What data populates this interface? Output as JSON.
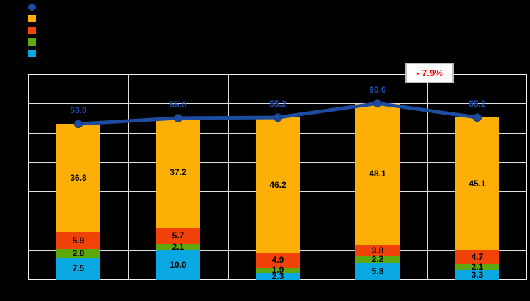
{
  "background": "#000000",
  "chart_data": {
    "type": "bar",
    "subtype": "stacked-column-with-total-line",
    "title": "",
    "categories": [
      "",
      "",
      "",
      "",
      ""
    ],
    "ylim": [
      0,
      70
    ],
    "grid_step": 10,
    "grid": true,
    "grid_color": "#DFDFDF",
    "plot_border_color": "#EFEFEF",
    "label_color": "#000000",
    "stack_series": [
      {
        "name": "cyan-series",
        "color": "#09A8E2",
        "values": [
          7.5,
          10.0,
          2.3,
          5.8,
          3.3
        ]
      },
      {
        "name": "green-series",
        "color": "#5EA80E",
        "values": [
          2.8,
          2.1,
          1.9,
          2.2,
          2.1
        ]
      },
      {
        "name": "orangered-series",
        "color": "#F1420A",
        "values": [
          5.9,
          5.7,
          4.9,
          3.8,
          4.7
        ]
      },
      {
        "name": "orange-series",
        "color": "#FCB005",
        "values": [
          36.8,
          37.2,
          46.2,
          48.1,
          45.1
        ]
      }
    ],
    "line_series": {
      "name": "total-line",
      "color": "#1E4CA1",
      "marker_edge_color": "#16386F",
      "label_color": "#2051B5",
      "values": [
        53.0,
        55.0,
        55.2,
        60.0,
        55.2
      ]
    },
    "annotation": {
      "text": "- 7.9%",
      "color": "#FF0000"
    },
    "legend_position": "top-left",
    "legend_markers": [
      {
        "shape": "circle",
        "color": "#1E4CA1",
        "series": "total-line"
      },
      {
        "shape": "square",
        "color": "#FCB005",
        "series": "orange-series"
      },
      {
        "shape": "square",
        "color": "#F1420A",
        "series": "orangered-series"
      },
      {
        "shape": "square",
        "color": "#5EA80E",
        "series": "green-series"
      },
      {
        "shape": "square",
        "color": "#09A8E2",
        "series": "cyan-series"
      }
    ]
  }
}
